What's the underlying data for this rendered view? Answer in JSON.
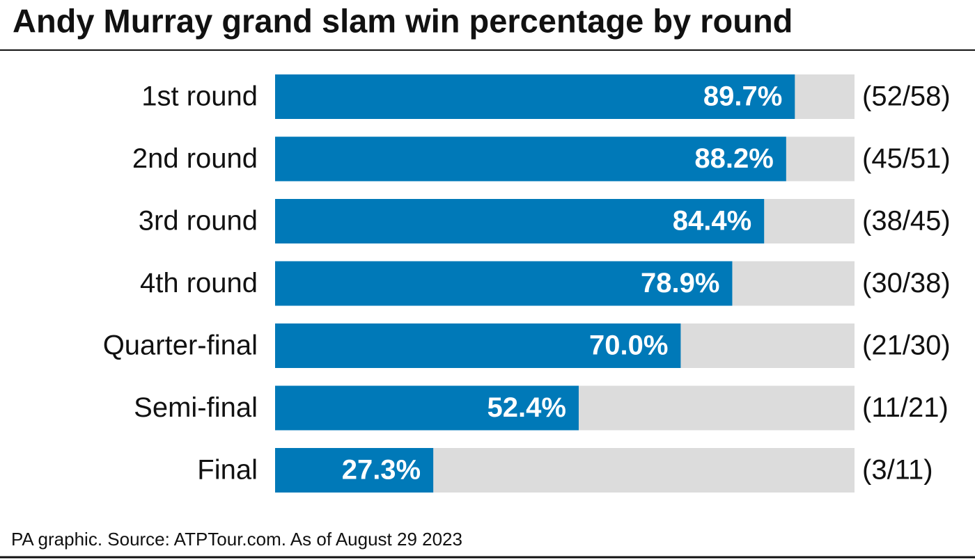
{
  "chart_data": {
    "type": "bar",
    "orientation": "horizontal",
    "title": "Andy Murray grand slam win percentage by round",
    "categories": [
      "1st round",
      "2nd round",
      "3rd round",
      "4th round",
      "Quarter-final",
      "Semi-final",
      "Final"
    ],
    "values": [
      89.7,
      88.2,
      84.4,
      78.9,
      70.0,
      52.4,
      27.3
    ],
    "value_labels": [
      "89.7%",
      "88.2%",
      "84.4%",
      "78.9%",
      "70.0%",
      "52.4%",
      "27.3%"
    ],
    "records": [
      "(52/58)",
      "(45/51)",
      "(38/45)",
      "(30/38)",
      "(21/30)",
      "(11/21)",
      "(3/11)"
    ],
    "color": "#0079b8",
    "track_color": "#dcdcdc",
    "xlim": [
      0,
      100
    ],
    "source": "PA graphic. Source: ATPTour.com. As of August 29 2023"
  }
}
